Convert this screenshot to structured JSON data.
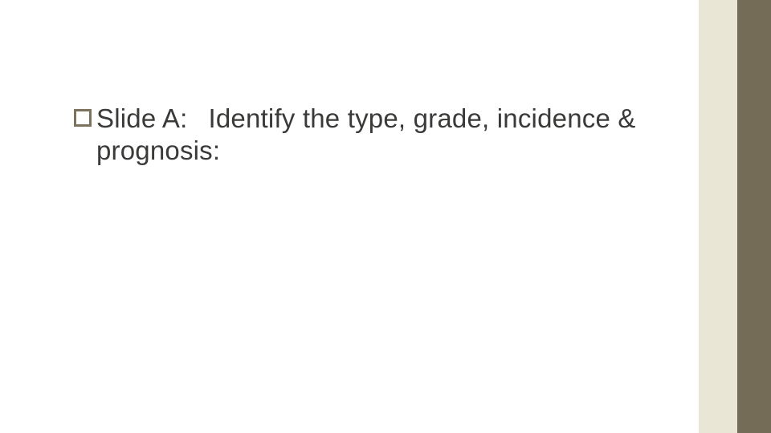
{
  "slide": {
    "bullet": {
      "label_part1": "Slide A:",
      "label_part2": "Identify the type, grade, incidence & prognosis:"
    }
  },
  "style": {
    "background_color": "#ffffff",
    "text_color": "#3a3a38",
    "bullet_border_color": "#7b735d",
    "sidebar_outer_color": "#eae6d5",
    "sidebar_outer_width": 90,
    "sidebar_dark_color": "#746c57",
    "sidebar_dark_width": 42,
    "body_fontsize": 33
  }
}
